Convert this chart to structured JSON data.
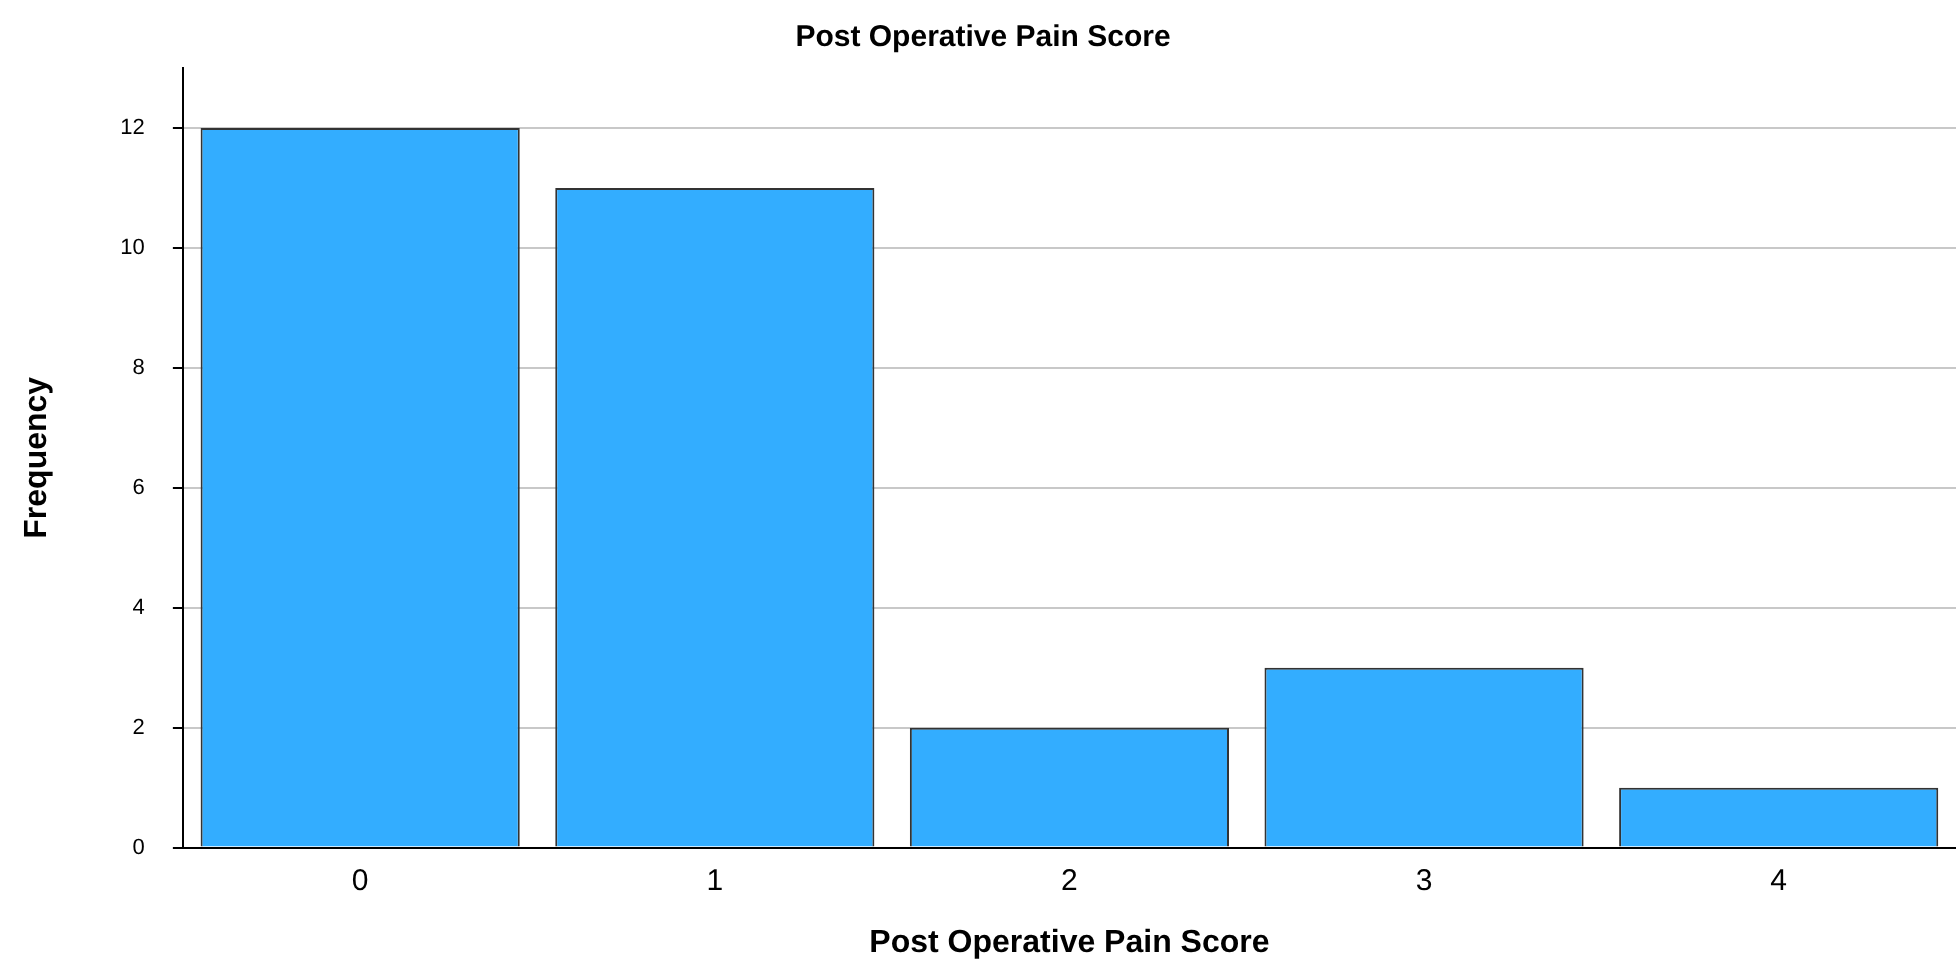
{
  "chart_data": {
    "type": "bar",
    "title": "Post Operative Pain Score",
    "xlabel": "Post Operative Pain Score",
    "ylabel": "Frequency",
    "categories": [
      "0",
      "1",
      "2",
      "3",
      "4"
    ],
    "values": [
      12,
      11,
      2,
      3,
      1
    ],
    "color": "#33adff",
    "ylim": [
      0,
      13
    ],
    "yticks": [
      0,
      2,
      4,
      6,
      8,
      10,
      12
    ],
    "grid": "y",
    "legend": false
  }
}
